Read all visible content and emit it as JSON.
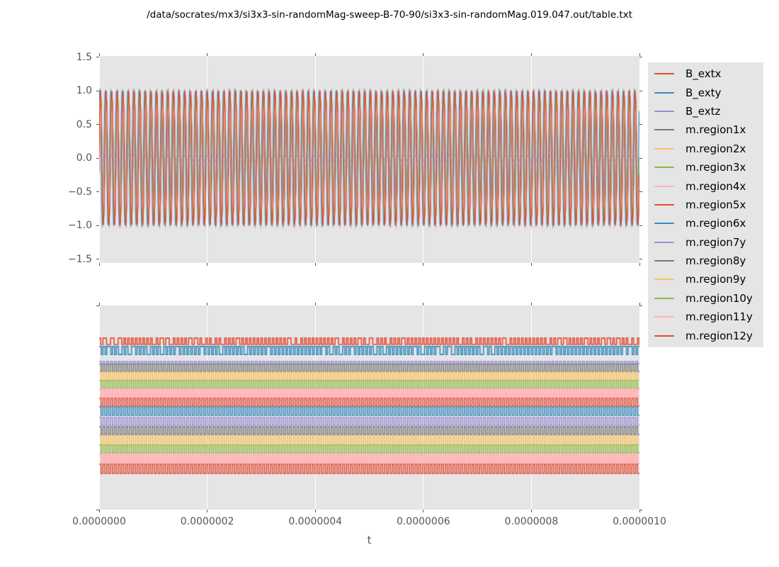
{
  "title": "/data/socrates/mx3/si3x3-sin-randomMag-sweep-B-70-90/si3x3-sin-randomMag.019.047.out/table.txt",
  "xlabel": "t",
  "colors": {
    "figure_background": "#ffffff",
    "axes_background": "#e5e5e5",
    "grid": "#ffffff",
    "tick": "#555555",
    "tick_label": "#555555",
    "title_text": "#000000",
    "legend_background": "#e5e5e5",
    "cycle": [
      "#E24A33",
      "#348ABD",
      "#988ED5",
      "#777777",
      "#FBC15E",
      "#8EBA42",
      "#FFB5B8"
    ]
  },
  "legend": {
    "position": "right-outside",
    "entries": [
      {
        "label": "B_extx",
        "color": "#E24A33"
      },
      {
        "label": "B_exty",
        "color": "#348ABD"
      },
      {
        "label": "B_extz",
        "color": "#988ED5"
      },
      {
        "label": "m.region1x",
        "color": "#777777"
      },
      {
        "label": "m.region2x",
        "color": "#FBC15E"
      },
      {
        "label": "m.region3x",
        "color": "#8EBA42"
      },
      {
        "label": "m.region4x",
        "color": "#FFB5B8"
      },
      {
        "label": "m.region5x",
        "color": "#E24A33"
      },
      {
        "label": "m.region6x",
        "color": "#348ABD"
      },
      {
        "label": "m.region7y",
        "color": "#988ED5"
      },
      {
        "label": "m.region8y",
        "color": "#777777"
      },
      {
        "label": "m.region9y",
        "color": "#FBC15E"
      },
      {
        "label": "m.region10y",
        "color": "#8EBA42"
      },
      {
        "label": "m.region11y",
        "color": "#FFB5B8"
      },
      {
        "label": "m.region12y",
        "color": "#E24A33"
      }
    ]
  },
  "chart_data": [
    {
      "type": "line",
      "subplot": "top",
      "wave": "sine",
      "grid": "vertical-only",
      "x_min": 0.0,
      "x_max": 1e-06,
      "ylim": [
        -1.55,
        1.55
      ],
      "ytick_labels": [
        "1.5",
        "1.0",
        "0.5",
        "0.0",
        "−0.5",
        "−1.0",
        "−1.5"
      ],
      "ytick_values": [
        1.5,
        1.0,
        0.5,
        0.0,
        -0.5,
        -1.0,
        -1.5
      ],
      "approx_cycles_in_window": 96,
      "series": [
        {
          "name": "B_extx",
          "color": "#E24A33",
          "amplitude": 1.0,
          "phase": 0.0
        },
        {
          "name": "B_exty",
          "color": "#348ABD",
          "amplitude": 1.0,
          "phase": 1.05
        },
        {
          "name": "B_extz",
          "color": "#988ED5",
          "amplitude": 0.04,
          "phase": 0.0
        },
        {
          "name": "m.region1x",
          "color": "#777777",
          "amplitude": 0.78,
          "phase": 0.15
        },
        {
          "name": "m.region2x",
          "color": "#FBC15E",
          "amplitude": 0.92,
          "phase": -0.2
        },
        {
          "name": "m.region3x",
          "color": "#8EBA42",
          "amplitude": 0.7,
          "phase": 0.3
        },
        {
          "name": "m.region4x",
          "color": "#FFB5B8",
          "amplitude": 0.85,
          "phase": 0.05
        },
        {
          "name": "m.region5x",
          "color": "#E24A33",
          "amplitude": 0.96,
          "phase": -0.1
        },
        {
          "name": "m.region6x",
          "color": "#348ABD",
          "amplitude": 0.74,
          "phase": 0.2
        },
        {
          "name": "m.region7y",
          "color": "#988ED5",
          "amplitude": 0.88,
          "phase": -0.25
        },
        {
          "name": "m.region8y",
          "color": "#777777",
          "amplitude": 0.68,
          "phase": 0.1
        },
        {
          "name": "m.region9y",
          "color": "#FBC15E",
          "amplitude": 0.81,
          "phase": -0.05
        },
        {
          "name": "m.region10y",
          "color": "#8EBA42",
          "amplitude": 0.93,
          "phase": 0.25
        },
        {
          "name": "m.region11y",
          "color": "#FFB5B8",
          "amplitude": 0.72,
          "phase": -0.15
        },
        {
          "name": "m.region12y",
          "color": "#E24A33",
          "amplitude": 0.98,
          "phase": 0.02
        }
      ]
    },
    {
      "type": "line",
      "subplot": "bottom",
      "wave": "square",
      "grid": "vertical-only",
      "x_min": 0.0,
      "x_max": 1e-06,
      "xtick_labels": [
        "0.0000000",
        "0.0000002",
        "0.0000004",
        "0.0000006",
        "0.0000008",
        "0.0000010"
      ],
      "xtick_values": [
        0.0,
        2e-07,
        4e-07,
        6e-07,
        8e-07,
        1e-06
      ],
      "ytick_labels": [],
      "approx_cycles_in_window": 142,
      "traces": [
        {
          "name": "B_extx",
          "color": "#E24A33",
          "hi_frac": 0.16,
          "lo_frac": 0.191,
          "duty": 0.42,
          "linewidth": 1.6,
          "irregular": true
        },
        {
          "name": "B_exty",
          "color": "#348ABD",
          "hi_frac": 0.201,
          "lo_frac": 0.24,
          "duty": 0.58,
          "linewidth": 1.6,
          "irregular": true
        },
        {
          "name": "B_extz",
          "color": "#988ED5",
          "hi_frac": 0.274,
          "lo_frac": 0.285,
          "duty": 0.5,
          "linewidth": 1.5,
          "irregular": false
        },
        {
          "name": "m.region1x",
          "color": "#777777",
          "hi_frac": 0.288,
          "lo_frac": 0.323,
          "duty": 0.5,
          "linewidth": 1.5,
          "irregular": false
        },
        {
          "name": "m.region2x",
          "color": "#FBC15E",
          "hi_frac": 0.326,
          "lo_frac": 0.365,
          "duty": 0.5,
          "linewidth": 1.5,
          "irregular": false
        },
        {
          "name": "m.region3x",
          "color": "#8EBA42",
          "hi_frac": 0.368,
          "lo_frac": 0.406,
          "duty": 0.5,
          "linewidth": 1.5,
          "irregular": false
        },
        {
          "name": "m.region4x",
          "color": "#FFB5B8",
          "hi_frac": 0.41,
          "lo_frac": 0.448,
          "duty": 0.5,
          "linewidth": 2.4,
          "irregular": false
        },
        {
          "name": "m.region5x",
          "color": "#E24A33",
          "hi_frac": 0.455,
          "lo_frac": 0.493,
          "duty": 0.5,
          "linewidth": 1.5,
          "irregular": false
        },
        {
          "name": "m.region6x",
          "color": "#348ABD",
          "hi_frac": 0.497,
          "lo_frac": 0.538,
          "duty": 0.5,
          "linewidth": 1.5,
          "irregular": false
        },
        {
          "name": "m.region7y",
          "color": "#988ED5",
          "hi_frac": 0.549,
          "lo_frac": 0.587,
          "duty": 0.5,
          "linewidth": 1.5,
          "irregular": false
        },
        {
          "name": "m.region8y",
          "color": "#777777",
          "hi_frac": 0.594,
          "lo_frac": 0.632,
          "duty": 0.5,
          "linewidth": 1.5,
          "irregular": false
        },
        {
          "name": "m.region9y",
          "color": "#FBC15E",
          "hi_frac": 0.639,
          "lo_frac": 0.681,
          "duty": 0.5,
          "linewidth": 1.5,
          "irregular": false
        },
        {
          "name": "m.region10y",
          "color": "#8EBA42",
          "hi_frac": 0.684,
          "lo_frac": 0.722,
          "duty": 0.5,
          "linewidth": 1.5,
          "irregular": false
        },
        {
          "name": "m.region11y",
          "color": "#FFB5B8",
          "hi_frac": 0.729,
          "lo_frac": 0.771,
          "duty": 0.5,
          "linewidth": 2.4,
          "irregular": false
        },
        {
          "name": "m.region12y",
          "color": "#E24A33",
          "hi_frac": 0.778,
          "lo_frac": 0.823,
          "duty": 0.5,
          "linewidth": 1.5,
          "irregular": false
        }
      ]
    }
  ]
}
